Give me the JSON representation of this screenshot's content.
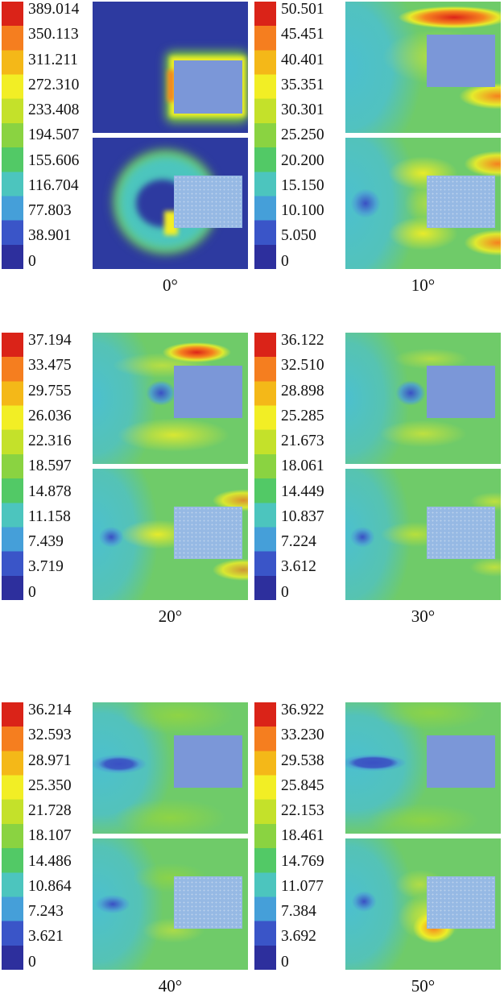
{
  "figure": {
    "description": "Six contour-plot panels of a simulated field around a rectangular block at inclination angles 0-50 degrees; each panel has a vertical rainbow colorbar with 11 tick labels and two stacked contour fields",
    "background": "#ffffff"
  },
  "panels": [
    {
      "angle": "0°",
      "ticks": [
        "389.014",
        "350.113",
        "311.211",
        "272.310",
        "233.408",
        "194.507",
        "155.606",
        "116.704",
        "77.803",
        "38.901",
        "0"
      ]
    },
    {
      "angle": "10°",
      "ticks": [
        "50.501",
        "45.451",
        "40.401",
        "35.351",
        "30.301",
        "25.250",
        "20.200",
        "15.150",
        "10.100",
        "5.050",
        "0"
      ]
    },
    {
      "angle": "20°",
      "ticks": [
        "37.194",
        "33.475",
        "29.755",
        "26.036",
        "22.316",
        "18.597",
        "14.878",
        "11.158",
        "7.439",
        "3.719",
        "0"
      ]
    },
    {
      "angle": "30°",
      "ticks": [
        "36.122",
        "32.510",
        "28.898",
        "25.285",
        "21.673",
        "18.061",
        "14.449",
        "10.837",
        "7.224",
        "3.612",
        "0"
      ]
    },
    {
      "angle": "40°",
      "ticks": [
        "36.214",
        "32.593",
        "28.971",
        "25.350",
        "21.728",
        "18.107",
        "14.486",
        "10.864",
        "7.243",
        "3.621",
        "0"
      ]
    },
    {
      "angle": "50°",
      "ticks": [
        "36.922",
        "33.230",
        "29.538",
        "25.845",
        "22.153",
        "18.461",
        "14.769",
        "11.077",
        "7.384",
        "3.692",
        "0"
      ]
    }
  ],
  "chart_data": {
    "type": "heatmap",
    "layout": "3x2 grid; per panel: left vertical colorbar (max at top, 0 at bottom), right side two stacked contour fields with a light-blue rectangular block obstacle near the right edge, angle caption centered below",
    "colormap_top_to_bottom": [
      "#da2318",
      "#f57e1f",
      "#f4b818",
      "#f2ee25",
      "#c4e12a",
      "#8ad341",
      "#52c966",
      "#4cc5be",
      "#459fd9",
      "#3a55c8",
      "#2d2f9d"
    ],
    "panels": [
      {
        "label": "0°",
        "colorbar_max": 389.014,
        "colorbar_ticks": [
          389.014,
          350.113,
          311.211,
          272.31,
          233.408,
          194.507,
          155.606,
          116.704,
          77.803,
          38.901,
          0
        ]
      },
      {
        "label": "10°",
        "colorbar_max": 50.501,
        "colorbar_ticks": [
          50.501,
          45.451,
          40.401,
          35.351,
          30.301,
          25.25,
          20.2,
          15.15,
          10.1,
          5.05,
          0
        ]
      },
      {
        "label": "20°",
        "colorbar_max": 37.194,
        "colorbar_ticks": [
          37.194,
          33.475,
          29.755,
          26.036,
          22.316,
          18.597,
          14.878,
          11.158,
          7.439,
          3.719,
          0
        ]
      },
      {
        "label": "30°",
        "colorbar_max": 36.122,
        "colorbar_ticks": [
          36.122,
          32.51,
          28.898,
          25.285,
          21.673,
          18.061,
          14.449,
          10.837,
          7.224,
          3.612,
          0
        ]
      },
      {
        "label": "40°",
        "colorbar_max": 36.214,
        "colorbar_ticks": [
          36.214,
          32.593,
          28.971,
          25.35,
          21.728,
          18.107,
          14.486,
          10.864,
          7.243,
          3.621,
          0
        ]
      },
      {
        "label": "50°",
        "colorbar_max": 36.922,
        "colorbar_ticks": [
          36.922,
          33.23,
          29.538,
          25.845,
          22.153,
          18.461,
          14.769,
          11.077,
          7.384,
          3.692,
          0
        ]
      }
    ]
  }
}
